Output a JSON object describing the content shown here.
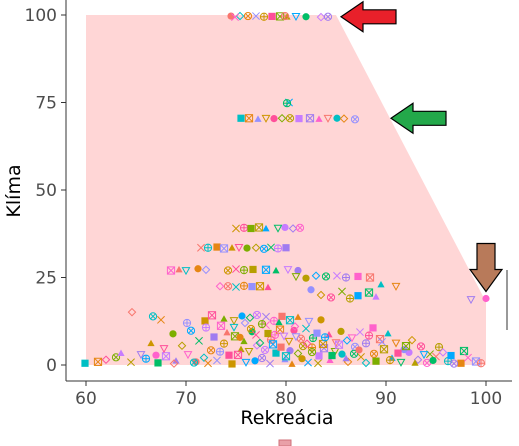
{
  "chart_data": {
    "type": "scatter",
    "xlabel": "Rekreácia",
    "ylabel": "Klíma",
    "xlim": [
      58,
      102
    ],
    "ylim": [
      -3,
      101
    ],
    "x_ticks": [
      60,
      70,
      80,
      90,
      100
    ],
    "y_ticks": [
      0,
      25,
      50,
      75,
      100
    ],
    "grid": false,
    "region": {
      "description_free": true,
      "color": "#ffd6d6",
      "polygon": [
        [
          60,
          100
        ],
        [
          85,
          100
        ],
        [
          100,
          18
        ],
        [
          100,
          0
        ],
        [
          60,
          0
        ]
      ]
    },
    "arrows": [
      {
        "color": "#e8202a",
        "direction": "left",
        "at": [
          85.5,
          99.5
        ]
      },
      {
        "color": "#23a84a",
        "direction": "left",
        "at": [
          90.5,
          70.5
        ]
      },
      {
        "color": "#b87a5a",
        "direction": "down",
        "at": [
          100,
          21
        ]
      }
    ],
    "marker_colors": [
      "#f8766d",
      "#e68613",
      "#cd9600",
      "#7cae00",
      "#00a9ff",
      "#c77cff",
      "#ff61cc",
      "#00bfc4",
      "#9590ff",
      "#ff4f9a",
      "#b79f00",
      "#00be67",
      "#a07cf0"
    ],
    "marker_shapes": [
      "circle",
      "triangle",
      "square",
      "cross",
      "x",
      "diamond",
      "triangle-down",
      "star",
      "square-x",
      "circle-plus",
      "circle-x",
      "plus-square"
    ],
    "series": [
      {
        "values": [
          [
            74.5,
            99.7
          ],
          [
            75.4,
            99.7
          ],
          [
            76.2,
            99.7
          ],
          [
            77.0,
            99.7
          ],
          [
            77.8,
            99.5
          ],
          [
            78.6,
            99.6
          ],
          [
            79.4,
            99.6
          ],
          [
            80.1,
            99.5
          ],
          [
            81.0,
            99.6
          ],
          [
            82.0,
            99.5
          ],
          [
            83.5,
            99.4
          ],
          [
            84.2,
            99.5
          ],
          [
            74.9,
            99.4
          ],
          [
            79.9,
            99.7
          ],
          [
            75.5,
            70.5
          ],
          [
            76.3,
            70.5
          ],
          [
            77.2,
            70.3
          ],
          [
            78.0,
            70.5
          ],
          [
            78.8,
            70.4
          ],
          [
            79.6,
            70.5
          ],
          [
            80.4,
            70.5
          ],
          [
            80.3,
            75.0
          ],
          [
            80.1,
            74.8
          ],
          [
            81.3,
            70.4
          ],
          [
            82.4,
            70.5
          ],
          [
            83.3,
            70.3
          ],
          [
            84.2,
            70.5
          ],
          [
            85.1,
            70.5
          ],
          [
            85.8,
            70.4
          ],
          [
            86.9,
            70.2
          ],
          [
            75.0,
            39.0
          ],
          [
            75.8,
            39.2
          ],
          [
            76.5,
            39.0
          ],
          [
            77.3,
            39.3
          ],
          [
            78.0,
            39.0
          ],
          [
            79.2,
            39.1
          ],
          [
            79.9,
            39.3
          ],
          [
            80.7,
            39.0
          ],
          [
            81.4,
            39.2
          ],
          [
            71.5,
            33.5
          ],
          [
            72.2,
            33.5
          ],
          [
            73.1,
            33.7
          ],
          [
            73.8,
            33.3
          ],
          [
            74.6,
            33.5
          ],
          [
            75.3,
            33.6
          ],
          [
            76.1,
            33.4
          ],
          [
            77.0,
            33.5
          ],
          [
            77.8,
            33.2
          ],
          [
            78.5,
            33.6
          ],
          [
            79.2,
            33.3
          ],
          [
            80.0,
            33.5
          ],
          [
            68.5,
            27.0
          ],
          [
            69.3,
            27.3
          ],
          [
            70.0,
            27.0
          ],
          [
            71.2,
            27.5
          ],
          [
            72.0,
            27.2
          ],
          [
            74.2,
            27.0
          ],
          [
            75.0,
            27.4
          ],
          [
            75.8,
            27.1
          ],
          [
            76.7,
            27.3
          ],
          [
            78.0,
            27.2
          ],
          [
            79.0,
            27.0
          ],
          [
            80.2,
            27.3
          ],
          [
            81.2,
            27.0
          ],
          [
            73.4,
            22.5
          ],
          [
            74.2,
            22.5
          ],
          [
            75.0,
            22.3
          ],
          [
            75.8,
            22.6
          ],
          [
            76.6,
            22.4
          ],
          [
            77.4,
            22.5
          ],
          [
            78.2,
            22.2
          ],
          [
            81.0,
            25.3
          ],
          [
            82.0,
            24.8
          ],
          [
            83.0,
            25.5
          ],
          [
            84.0,
            25.3
          ],
          [
            85.1,
            25.5
          ],
          [
            86.0,
            25.0
          ],
          [
            87.2,
            25.3
          ],
          [
            88.4,
            25.0
          ],
          [
            89.5,
            23.0
          ],
          [
            91.0,
            22.5
          ],
          [
            82.5,
            21.5
          ],
          [
            83.5,
            20.0
          ],
          [
            84.5,
            19.3
          ],
          [
            85.6,
            21.0
          ],
          [
            86.4,
            19.0
          ],
          [
            87.2,
            19.8
          ],
          [
            88.3,
            20.7
          ],
          [
            89.0,
            19.5
          ],
          [
            98.5,
            18.7
          ],
          [
            100.0,
            19.0
          ],
          [
            64.6,
            15.1
          ],
          [
            66.7,
            13.9
          ],
          [
            67.5,
            12.9
          ],
          [
            70.1,
            12.0
          ],
          [
            71.9,
            12.6
          ],
          [
            72.6,
            14.2
          ],
          [
            73.8,
            13.2
          ],
          [
            74.8,
            12.7
          ],
          [
            75.6,
            14.0
          ],
          [
            76.4,
            13.5
          ],
          [
            77.1,
            14.3
          ],
          [
            78.0,
            13.8
          ],
          [
            78.8,
            12.6
          ],
          [
            79.6,
            13.9
          ],
          [
            80.4,
            12.8
          ],
          [
            81.2,
            13.7
          ],
          [
            82.3,
            12.5
          ],
          [
            83.5,
            12.9
          ],
          [
            62.0,
            1.5
          ],
          [
            63.0,
            2.2
          ],
          [
            64.5,
            0.8
          ],
          [
            66.0,
            1.8
          ],
          [
            67.2,
            0.6
          ],
          [
            68.0,
            2.5
          ],
          [
            69.0,
            1.2
          ],
          [
            70.2,
            3.0
          ],
          [
            71.0,
            0.9
          ],
          [
            71.8,
            2.1
          ],
          [
            72.5,
            4.2
          ],
          [
            73.1,
            1.3
          ],
          [
            73.8,
            6.1
          ],
          [
            74.3,
            2.8
          ],
          [
            74.9,
            8.2
          ],
          [
            75.5,
            4.5
          ],
          [
            76.0,
            0.8
          ],
          [
            76.6,
            9.5
          ],
          [
            77.1,
            5.6
          ],
          [
            77.6,
            2.0
          ],
          [
            78.0,
            11.4
          ],
          [
            78.5,
            7.2
          ],
          [
            79.0,
            3.4
          ],
          [
            79.4,
            10.1
          ],
          [
            79.9,
            1.6
          ],
          [
            80.3,
            6.8
          ],
          [
            80.8,
            9.9
          ],
          [
            81.2,
            3.3
          ],
          [
            81.7,
            5.4
          ],
          [
            82.2,
            0.7
          ],
          [
            82.7,
            7.7
          ],
          [
            83.3,
            2.6
          ],
          [
            83.8,
            4.8
          ],
          [
            84.4,
            1.4
          ],
          [
            85.0,
            6.4
          ],
          [
            85.6,
            3.1
          ],
          [
            86.2,
            0.9
          ],
          [
            86.9,
            5.2
          ],
          [
            87.5,
            2.3
          ],
          [
            88.3,
            8.4
          ],
          [
            89.0,
            1.1
          ],
          [
            89.8,
            4.5
          ],
          [
            90.6,
            2.0
          ],
          [
            91.5,
            0.8
          ],
          [
            92.3,
            3.6
          ],
          [
            93.2,
            1.5
          ],
          [
            94.1,
            0.6
          ],
          [
            95.0,
            2.4
          ],
          [
            96.2,
            1.1
          ],
          [
            97.5,
            0.5
          ],
          [
            99.0,
            1.0
          ],
          [
            66.5,
            6.2
          ],
          [
            67.8,
            4.7
          ],
          [
            68.7,
            8.9
          ],
          [
            69.6,
            5.5
          ],
          [
            70.5,
            9.8
          ],
          [
            71.3,
            6.9
          ],
          [
            72.0,
            10.7
          ],
          [
            72.8,
            8.0
          ],
          [
            73.5,
            11.2
          ],
          [
            74.1,
            9.3
          ],
          [
            74.8,
            10.8
          ],
          [
            75.4,
            7.9
          ],
          [
            75.9,
            12.0
          ],
          [
            76.5,
            10.3
          ],
          [
            77.0,
            8.6
          ],
          [
            77.6,
            11.7
          ],
          [
            78.2,
            9.0
          ],
          [
            78.7,
            5.9
          ],
          [
            79.3,
            12.2
          ],
          [
            79.8,
            8.3
          ],
          [
            80.4,
            4.1
          ],
          [
            80.9,
            11.0
          ],
          [
            81.5,
            7.5
          ],
          [
            82.0,
            10.4
          ],
          [
            82.6,
            5.0
          ],
          [
            83.1,
            9.1
          ],
          [
            83.7,
            6.0
          ],
          [
            84.3,
            8.7
          ],
          [
            84.9,
            3.9
          ],
          [
            85.5,
            9.6
          ],
          [
            86.1,
            7.0
          ],
          [
            86.8,
            3.2
          ],
          [
            87.4,
            9.4
          ],
          [
            88.0,
            6.2
          ],
          [
            88.7,
            10.6
          ],
          [
            89.4,
            7.4
          ],
          [
            90.2,
            9.0
          ],
          [
            91.0,
            6.3
          ],
          [
            91.8,
            4.4
          ],
          [
            92.6,
            7.1
          ],
          [
            93.5,
            5.3
          ],
          [
            94.4,
            3.1
          ],
          [
            95.3,
            5.1
          ],
          [
            96.5,
            2.7
          ],
          [
            97.8,
            4.0
          ],
          [
            63.5,
            3.4
          ],
          [
            65.5,
            3.0
          ],
          [
            67.0,
            2.8
          ],
          [
            68.8,
            0.4
          ],
          [
            70.8,
            0.7
          ],
          [
            72.2,
            0.5
          ],
          [
            73.4,
            3.8
          ],
          [
            74.6,
            0.3
          ],
          [
            75.2,
            2.9
          ],
          [
            75.8,
            6.8
          ],
          [
            76.3,
            3.9
          ],
          [
            76.9,
            1.2
          ],
          [
            77.4,
            6.3
          ],
          [
            77.9,
            4.3
          ],
          [
            78.4,
            0.4
          ],
          [
            78.9,
            8.6
          ],
          [
            79.5,
            5.1
          ],
          [
            80.0,
            2.5
          ],
          [
            80.6,
            0.3
          ],
          [
            81.0,
            8.1
          ],
          [
            81.6,
            1.8
          ],
          [
            82.1,
            6.1
          ],
          [
            82.6,
            3.7
          ],
          [
            83.2,
            0.5
          ],
          [
            83.9,
            7.9
          ],
          [
            84.6,
            2.7
          ],
          [
            85.3,
            5.8
          ],
          [
            86.0,
            1.9
          ],
          [
            86.6,
            7.8
          ],
          [
            87.3,
            4.3
          ],
          [
            88.0,
            0.6
          ],
          [
            88.8,
            3.2
          ],
          [
            89.6,
            6.6
          ],
          [
            90.4,
            1.4
          ],
          [
            91.2,
            3.4
          ],
          [
            92.0,
            5.4
          ],
          [
            92.9,
            0.6
          ],
          [
            93.8,
            3.0
          ],
          [
            94.7,
            1.3
          ],
          [
            95.7,
            3.6
          ],
          [
            96.8,
            0.4
          ],
          [
            98.2,
            2.1
          ],
          [
            99.5,
            0.5
          ],
          [
            59.9,
            0.5
          ],
          [
            61.2,
            0.9
          ]
        ]
      }
    ]
  }
}
